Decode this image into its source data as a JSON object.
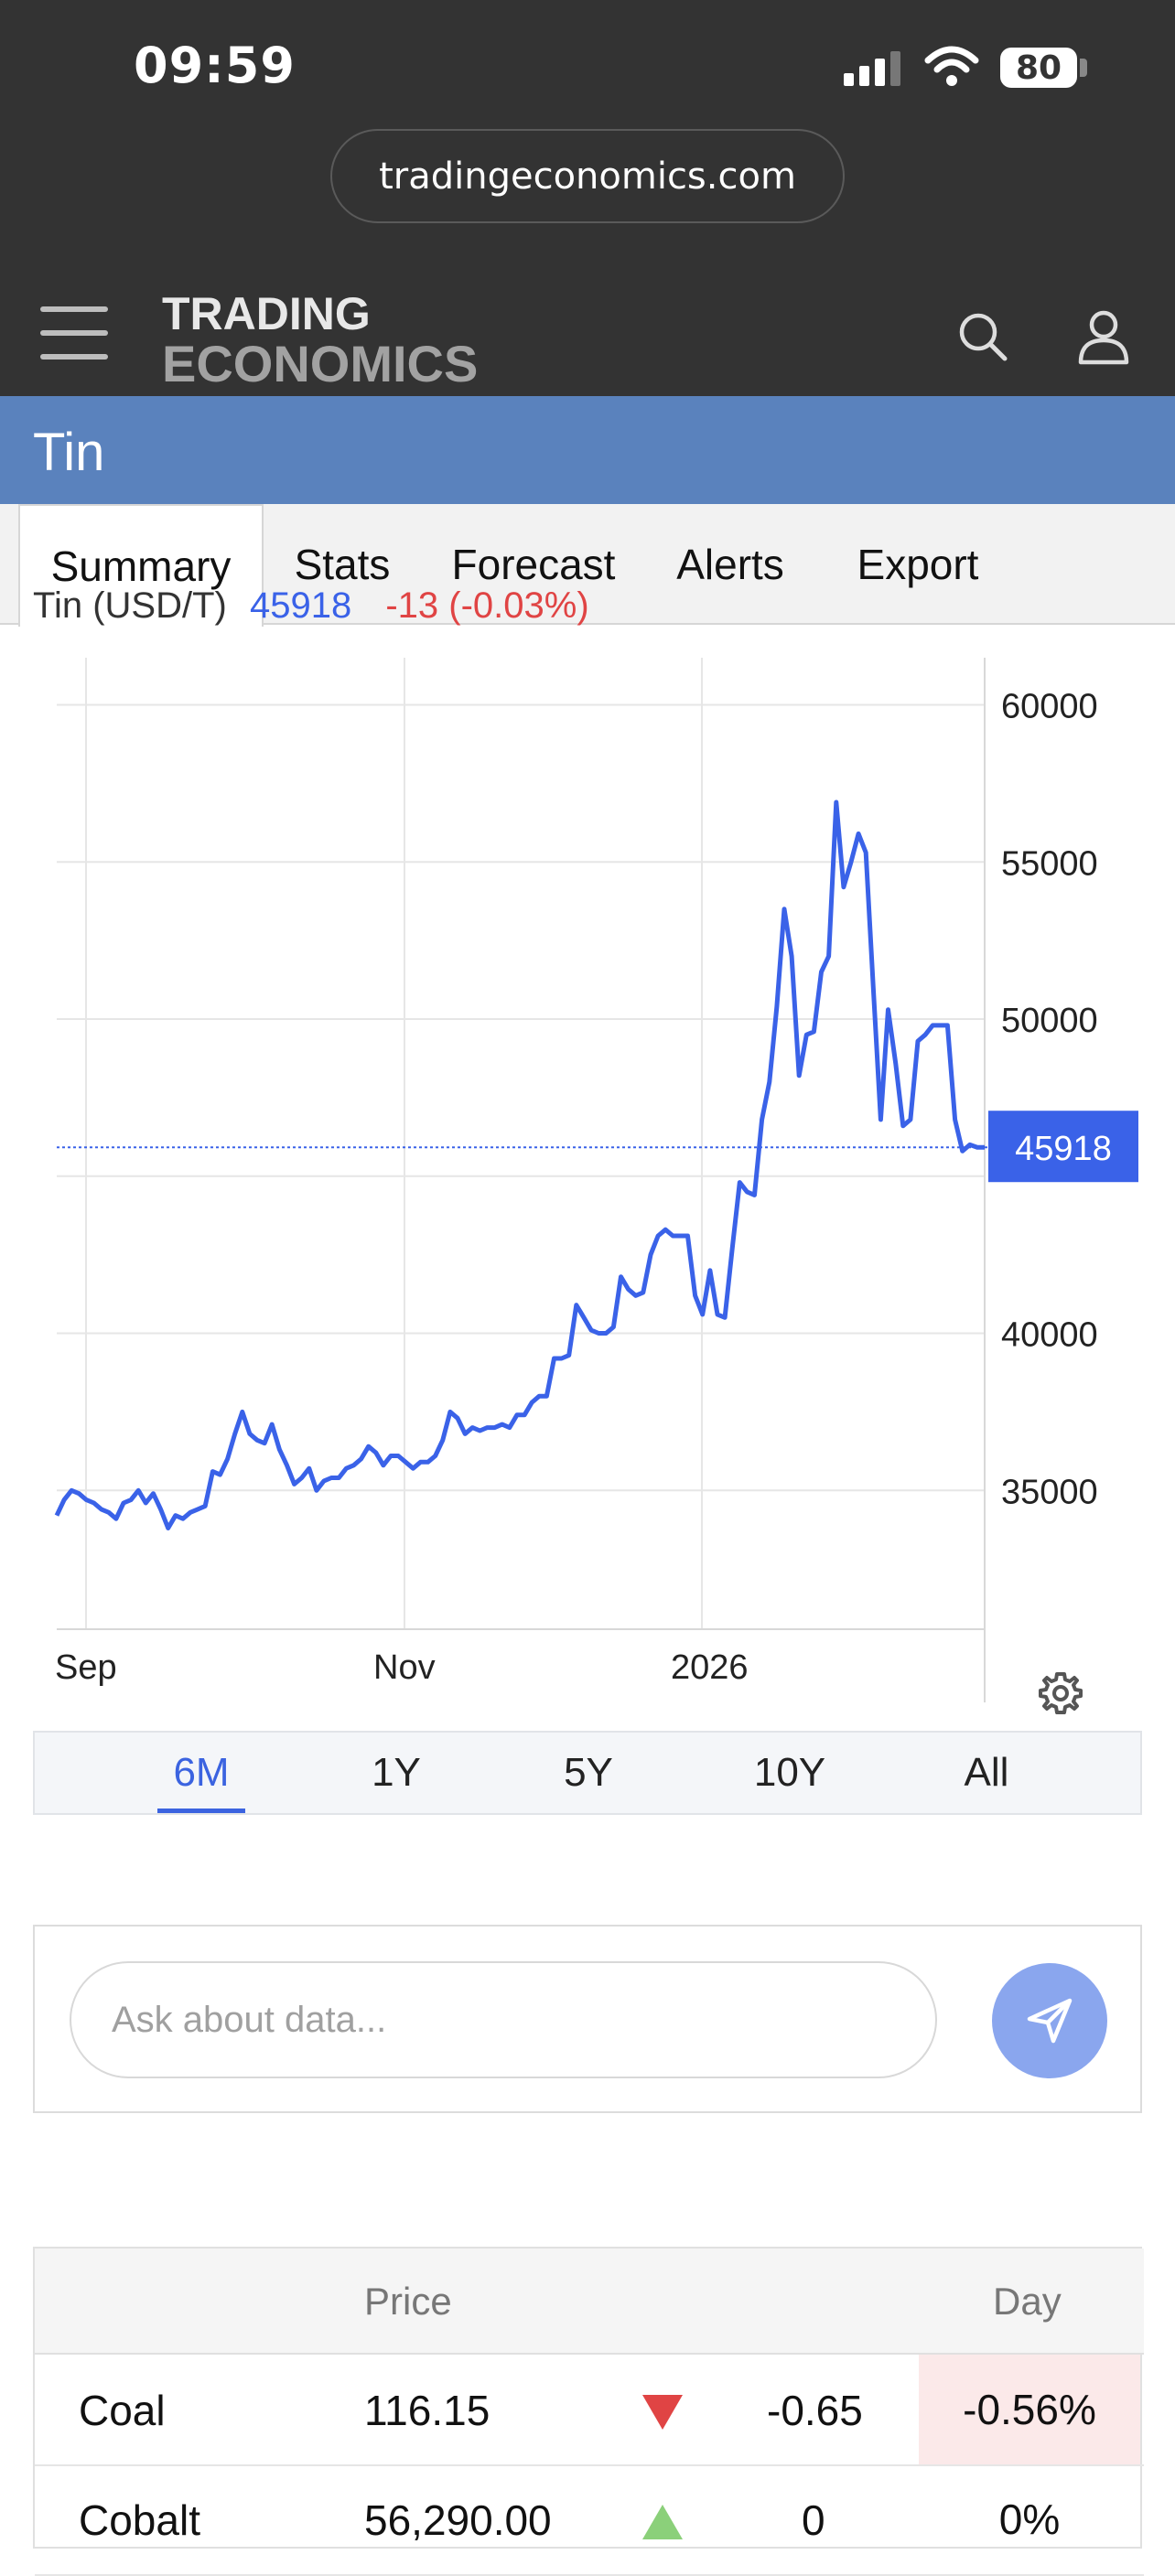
{
  "status_bar": {
    "time": "09:59",
    "battery": "80"
  },
  "browser": {
    "url": "tradingeconomics.com"
  },
  "site": {
    "logo_line1": "TRADING",
    "logo_line2": "ECONOMICS",
    "page_title": "Tin"
  },
  "tabs": [
    {
      "label": "Summary",
      "active": true
    },
    {
      "label": "Stats",
      "active": false
    },
    {
      "label": "Forecast",
      "active": false
    },
    {
      "label": "Alerts",
      "active": false
    },
    {
      "label": "Export",
      "active": false
    }
  ],
  "legend": {
    "name": "Tin (USD/T)",
    "value": "45918",
    "change": "-13 (-0.03%)"
  },
  "chart_data": {
    "type": "line",
    "title": "",
    "series_name": "Tin (USD/T)",
    "x_tick_labels": [
      "Sep",
      "Nov",
      "2026"
    ],
    "y_ticks": [
      35000,
      40000,
      45000,
      50000,
      55000,
      60000
    ],
    "y_tick_labels": [
      "35000",
      "40000",
      "",
      "50000",
      "55000",
      "60000"
    ],
    "ylim": [
      30000,
      61500
    ],
    "current_value": 45918,
    "current_label": "45918",
    "grid": true,
    "line_color": "#3a62e8",
    "values": [
      34200,
      34700,
      35000,
      34900,
      34700,
      34600,
      34400,
      34300,
      34100,
      34600,
      34700,
      35000,
      34600,
      34900,
      34400,
      33800,
      34200,
      34100,
      34300,
      34400,
      34500,
      35600,
      35500,
      36000,
      36800,
      37500,
      36800,
      36600,
      36500,
      37100,
      36300,
      35800,
      35200,
      35400,
      35700,
      35000,
      35300,
      35400,
      35400,
      35700,
      35800,
      36000,
      36400,
      36200,
      35800,
      36100,
      36100,
      35900,
      35700,
      35900,
      35900,
      36100,
      36600,
      37500,
      37300,
      36800,
      37000,
      36900,
      37000,
      37000,
      37100,
      37000,
      37400,
      37400,
      37800,
      38000,
      38000,
      39200,
      39200,
      39300,
      40900,
      40500,
      40100,
      40000,
      40000,
      40200,
      41800,
      41400,
      41200,
      41300,
      42500,
      43100,
      43300,
      43100,
      43100,
      43100,
      41200,
      40600,
      42000,
      40600,
      40500,
      42700,
      44800,
      44500,
      44400,
      46800,
      48000,
      50400,
      53500,
      52000,
      48200,
      49500,
      49600,
      51500,
      52000,
      56900,
      54200,
      55000,
      55900,
      55300,
      51000,
      46800,
      50300,
      48600,
      46600,
      46800,
      49300,
      49500,
      49800,
      49800,
      49800,
      46800,
      45800,
      46000,
      45918,
      45918
    ]
  },
  "range_buttons": [
    {
      "label": "6M",
      "active": true
    },
    {
      "label": "1Y",
      "active": false
    },
    {
      "label": "5Y",
      "active": false
    },
    {
      "label": "10Y",
      "active": false
    },
    {
      "label": "All",
      "active": false
    }
  ],
  "ask": {
    "placeholder": "Ask about data..."
  },
  "table": {
    "headers": {
      "price": "Price",
      "day": "Day"
    },
    "rows": [
      {
        "name": "Coal",
        "price": "116.15",
        "direction": "down",
        "change": "-0.65",
        "pct": "-0.56%"
      },
      {
        "name": "Cobalt",
        "price": "56,290.00",
        "direction": "up",
        "change": "0",
        "pct": "0%"
      }
    ]
  },
  "colors": {
    "chrome": "#333333",
    "title_band": "#5a82bd",
    "accent": "#3b63e0",
    "negative": "#e04444",
    "positive": "#8bd07a",
    "negative_bg": "#fbe9e9"
  }
}
